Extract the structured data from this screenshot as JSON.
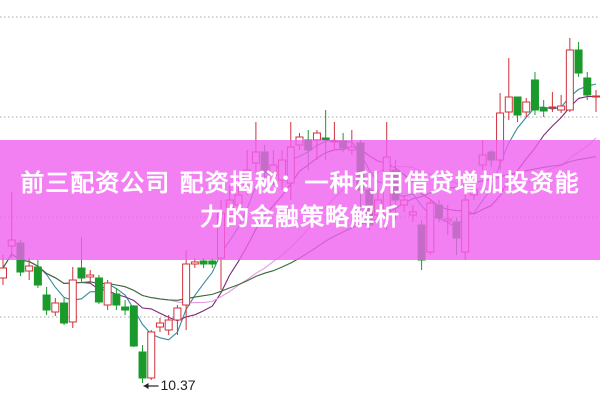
{
  "banner": {
    "title": "前三配资公司 配资揭秘：一种利用借贷增加投资能力的金融策略解析",
    "color": "#f060f0"
  },
  "chart_data": {
    "type": "candlestick",
    "ylim": [
      10.19,
      14.2
    ],
    "grid": true,
    "grid_style": "dotted-horizontal",
    "up_color": "#d0303a",
    "down_color": "#1a9a2a",
    "moving_averages": [
      5,
      10,
      20,
      30
    ],
    "ma_colors": [
      "#3a8a9a",
      "#7a2a7a",
      "#e59ae5",
      "#3a6a3a"
    ],
    "annotation": {
      "label": "10.37",
      "value": 10.37,
      "index": 16
    },
    "candles_ohlc": [
      [
        11.42,
        11.35,
        11.65,
        11.52
      ],
      [
        11.74,
        12.28,
        11.62,
        11.8
      ],
      [
        11.77,
        11.8,
        11.44,
        11.48
      ],
      [
        11.49,
        11.62,
        11.4,
        11.54
      ],
      [
        11.53,
        11.6,
        11.32,
        11.35
      ],
      [
        11.25,
        11.33,
        11.05,
        11.1
      ],
      [
        11.08,
        11.22,
        11.04,
        11.17
      ],
      [
        11.17,
        11.22,
        10.95,
        10.97
      ],
      [
        10.98,
        11.53,
        10.92,
        11.4
      ],
      [
        11.52,
        11.83,
        11.37,
        11.42
      ],
      [
        11.43,
        11.5,
        11.38,
        11.45
      ],
      [
        11.42,
        11.45,
        11.16,
        11.18
      ],
      [
        11.15,
        11.4,
        11.1,
        11.37
      ],
      [
        11.26,
        11.32,
        11.1,
        11.15
      ],
      [
        11.13,
        11.2,
        11.05,
        11.1
      ],
      [
        11.14,
        11.15,
        10.73,
        10.74
      ],
      [
        10.68,
        10.75,
        10.37,
        10.42
      ],
      [
        10.42,
        10.9,
        10.4,
        10.88
      ],
      [
        10.93,
        11.02,
        10.88,
        10.97
      ],
      [
        10.9,
        11.05,
        10.85,
        11.0
      ],
      [
        11.0,
        11.15,
        10.85,
        11.12
      ],
      [
        11.15,
        11.7,
        10.9,
        11.56
      ],
      [
        11.56,
        11.62,
        11.52,
        11.58
      ],
      [
        11.59,
        11.62,
        11.52,
        11.56
      ],
      [
        11.59,
        11.62,
        11.52,
        11.56
      ],
      [
        11.62,
        12.2,
        11.3,
        12.07
      ],
      [
        12.05,
        12.35,
        11.95,
        12.2
      ],
      [
        12.15,
        12.4,
        12.08,
        12.25
      ],
      [
        12.3,
        12.7,
        12.25,
        12.5
      ],
      [
        12.57,
        12.98,
        12.47,
        12.68
      ],
      [
        12.68,
        12.75,
        12.4,
        12.47
      ],
      [
        12.45,
        12.7,
        12.35,
        12.55
      ],
      [
        12.4,
        12.7,
        12.3,
        12.6
      ],
      [
        12.37,
        12.98,
        12.2,
        12.73
      ],
      [
        12.75,
        12.87,
        12.7,
        12.83
      ],
      [
        12.8,
        12.9,
        12.5,
        12.7
      ],
      [
        12.8,
        12.9,
        12.6,
        12.87
      ],
      [
        12.82,
        13.1,
        12.6,
        12.8
      ],
      [
        12.78,
        12.98,
        12.7,
        12.79
      ],
      [
        12.79,
        12.87,
        12.68,
        12.72
      ],
      [
        12.7,
        12.9,
        12.65,
        12.73
      ],
      [
        12.77,
        12.8,
        12.05,
        12.3
      ],
      [
        12.3,
        12.35,
        11.9,
        11.95
      ],
      [
        12.05,
        12.3,
        11.98,
        12.2
      ],
      [
        12.05,
        12.98,
        11.9,
        12.63
      ],
      [
        12.5,
        12.6,
        12.0,
        12.2
      ],
      [
        12.15,
        12.25,
        12.08,
        12.2
      ],
      [
        12.05,
        12.15,
        11.98,
        12.08
      ],
      [
        11.95,
        12.0,
        11.5,
        11.6
      ],
      [
        11.68,
        12.2,
        11.65,
        12.17
      ],
      [
        12.15,
        12.2,
        11.98,
        12.02
      ],
      [
        11.99,
        12.15,
        11.85,
        12.01
      ],
      [
        11.98,
        12.02,
        11.65,
        11.82
      ],
      [
        11.68,
        12.25,
        11.6,
        12.2
      ],
      [
        12.25,
        12.37,
        12.2,
        12.3
      ],
      [
        12.55,
        12.8,
        12.5,
        12.65
      ],
      [
        12.68,
        12.7,
        12.53,
        12.6
      ],
      [
        12.6,
        13.27,
        12.5,
        13.07
      ],
      [
        13.08,
        13.62,
        13.0,
        13.23
      ],
      [
        13.23,
        13.23,
        12.98,
        13.05
      ],
      [
        13.08,
        13.22,
        13.03,
        13.18
      ],
      [
        13.4,
        13.48,
        13.05,
        13.1
      ],
      [
        13.12,
        13.2,
        13.03,
        13.09
      ],
      [
        13.12,
        13.28,
        13.08,
        13.13
      ],
      [
        13.1,
        13.25,
        13.07,
        13.14
      ],
      [
        13.1,
        13.82,
        13.08,
        13.7
      ],
      [
        13.7,
        13.78,
        13.43,
        13.47
      ],
      [
        13.42,
        13.48,
        13.2,
        13.25
      ],
      [
        13.23,
        13.3,
        13.08,
        13.24
      ]
    ]
  }
}
